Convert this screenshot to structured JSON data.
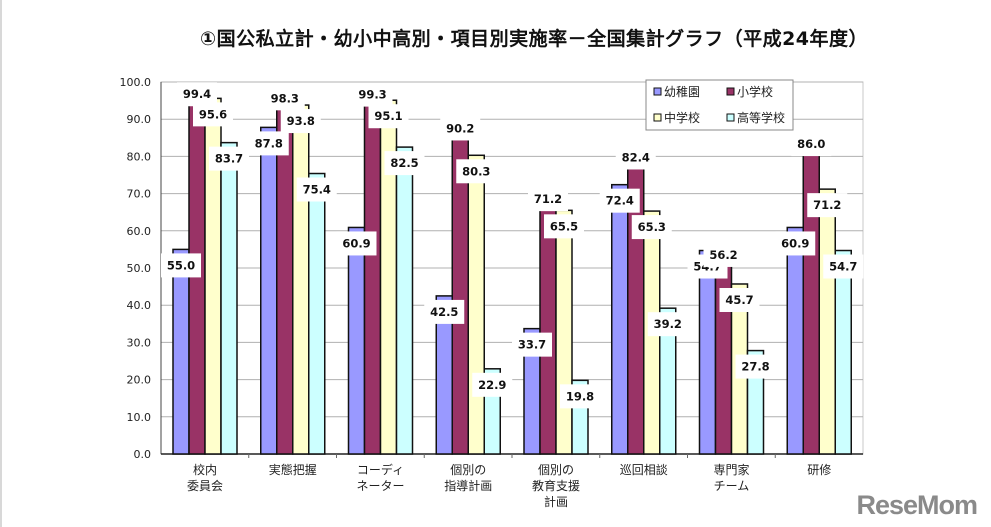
{
  "chart_data": {
    "type": "bar",
    "title": "①国公私立計・幼小中高別・項目別実施率－全国集計グラフ（平成24年度）",
    "categories": [
      [
        "校内",
        "委員会"
      ],
      [
        "実態把握"
      ],
      [
        "コーディ",
        "ネーター"
      ],
      [
        "個別の",
        "指導計画"
      ],
      [
        "個別の",
        "教育支援",
        "計画"
      ],
      [
        "巡回相談"
      ],
      [
        "専門家",
        "チーム"
      ],
      [
        "研修"
      ]
    ],
    "series": [
      {
        "name": "幼稚園",
        "color": "#9999ff",
        "values": [
          55.0,
          87.8,
          60.9,
          42.5,
          33.7,
          72.4,
          54.7,
          60.9
        ]
      },
      {
        "name": "小学校",
        "color": "#993366",
        "values": [
          99.4,
          98.3,
          99.3,
          90.2,
          71.2,
          82.4,
          56.2,
          86.0
        ]
      },
      {
        "name": "中学校",
        "color": "#ffffcc",
        "values": [
          95.6,
          93.8,
          95.1,
          80.3,
          65.5,
          65.3,
          45.7,
          71.2
        ]
      },
      {
        "name": "高等学校",
        "color": "#ccffff",
        "values": [
          83.7,
          75.4,
          82.5,
          22.9,
          19.8,
          39.2,
          27.8,
          54.7
        ]
      }
    ],
    "ylim": [
      0,
      100
    ],
    "yticks": [
      "0.0",
      "10.0",
      "20.0",
      "30.0",
      "40.0",
      "50.0",
      "60.0",
      "70.0",
      "80.0",
      "90.0",
      "100.0"
    ],
    "grid": true,
    "legend": "top-right"
  },
  "logo": "ReseMom"
}
